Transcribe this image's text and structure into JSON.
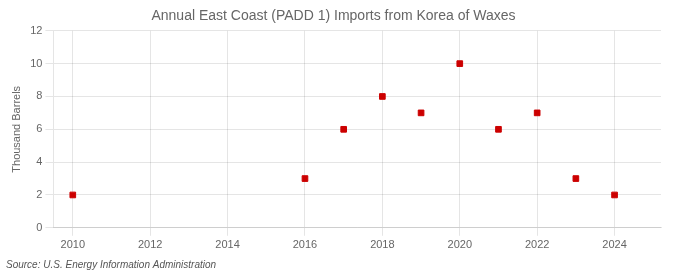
{
  "chart_data": {
    "type": "scatter",
    "title": "Annual East Coast (PADD 1) Imports from Korea of Waxes",
    "ylabel": "Thousand Barrels",
    "annotations": [
      "Source: U.S. Energy Information Administration"
    ],
    "x": [
      2010,
      2016,
      2017,
      2018,
      2019,
      2020,
      2021,
      2022,
      2023,
      2024
    ],
    "values": [
      2,
      3,
      6,
      8,
      7,
      10,
      6,
      7,
      3,
      2
    ],
    "color": "#cc0000",
    "marker": "square",
    "xlim": [
      2009.5,
      2025.2
    ],
    "xticks": [
      2010,
      2012,
      2014,
      2016,
      2018,
      2020,
      2022,
      2024
    ],
    "ylim": [
      0,
      12
    ],
    "yticks": [
      0,
      2,
      4,
      6,
      8,
      10,
      12
    ],
    "grid": true
  }
}
